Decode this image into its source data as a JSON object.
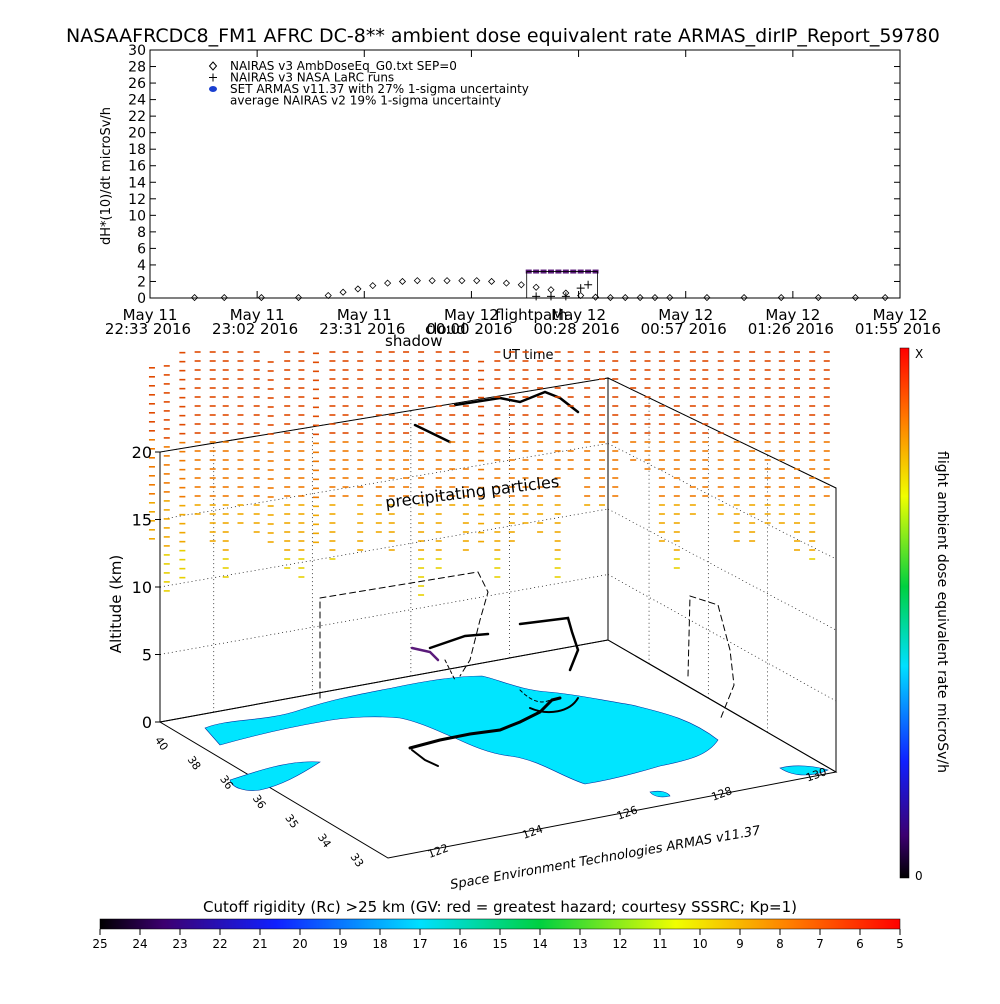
{
  "title": "NASAAFRCDC8_FM1 AFRC DC-8** ambient dose equivalent rate ARMAS_dirIP_Report_59780",
  "chart_data": [
    {
      "type": "scatter",
      "ylabel": "dH*(10)/dt microSv/h",
      "xlabel": "UT time",
      "ylim": [
        0,
        30
      ],
      "yticks": [
        0,
        2,
        4,
        6,
        8,
        10,
        12,
        14,
        16,
        18,
        20,
        22,
        24,
        26,
        28,
        30
      ],
      "xticks": [
        {
          "top": "May 11",
          "bottom": "22:33 2016"
        },
        {
          "top": "May 11",
          "bottom": "23:02 2016"
        },
        {
          "top": "May 11",
          "bottom": "23:31 2016"
        },
        {
          "top": "May 12",
          "bottom": "00:00 2016"
        },
        {
          "top": "May 12",
          "bottom": "00:28 2016"
        },
        {
          "top": "May 12",
          "bottom": "00:57 2016"
        },
        {
          "top": "May 12",
          "bottom": "01:26 2016"
        },
        {
          "top": "May 12",
          "bottom": "01:55 2016"
        }
      ],
      "x_minutes_range": [
        0,
        202
      ],
      "legend_position": "top-left",
      "legend": [
        {
          "symbol": "diamond",
          "label": "NAIRAS v3 AmbDoseEq_G0.txt SEP=0"
        },
        {
          "symbol": "plus",
          "label": "NAIRAS v3 NASA LaRC runs"
        },
        {
          "symbol": "dot",
          "label": "SET ARMAS v11.37 with 27% 1-sigma uncertainty",
          "color": "#1a3fd0"
        },
        {
          "symbol": "none",
          "label": "average NAIRAS v2 19% 1-sigma uncertainty"
        }
      ],
      "annotations": [
        {
          "text": "shadow"
        },
        {
          "text": "cloud"
        },
        {
          "text": "flightpath"
        }
      ],
      "series": [
        {
          "name": "NAIRAS v3 AmbDoseEq_G0.txt SEP=0",
          "symbol": "diamond",
          "x_minutes": [
            12,
            20,
            30,
            40,
            48,
            52,
            56,
            60,
            64,
            68,
            72,
            76,
            80,
            84,
            88,
            92,
            96,
            100,
            104,
            108,
            112,
            116,
            120,
            124,
            128,
            132,
            136,
            140,
            150,
            160,
            170,
            180,
            190,
            198
          ],
          "values": [
            0.05,
            0.05,
            0.05,
            0.05,
            0.3,
            0.7,
            1.1,
            1.5,
            1.8,
            2.0,
            2.1,
            2.1,
            2.1,
            2.1,
            2.1,
            2.0,
            1.8,
            1.6,
            1.3,
            1.0,
            0.6,
            0.3,
            0.1,
            0.05,
            0.05,
            0.05,
            0.05,
            0.05,
            0.05,
            0.05,
            0.05,
            0.05,
            0.05,
            0.05
          ]
        },
        {
          "name": "SET ARMAS v11.37 with 27% 1-sigma uncertainty",
          "symbol": "dot",
          "color": "#5a1a7a",
          "x_minutes": [
            102,
            104,
            106,
            108,
            110,
            112,
            114,
            116,
            118,
            120
          ],
          "values": [
            3.2,
            3.2,
            3.2,
            3.2,
            3.2,
            3.2,
            3.2,
            3.2,
            3.2,
            3.2
          ]
        },
        {
          "name": "NAIRAS v3 NASA LaRC runs",
          "symbol": "plus",
          "x_minutes": [
            104,
            108,
            112,
            116,
            118
          ],
          "values": [
            0.2,
            0.2,
            0.2,
            1.2,
            1.6
          ]
        }
      ]
    },
    {
      "type": "scatter",
      "ylabel": "Altitude (km)",
      "yticks": [
        0,
        5,
        10,
        15,
        20
      ],
      "lat_ticks": [
        "40",
        "38",
        "36",
        "34",
        "33"
      ],
      "lat_ticks_mirrored": [
        "36",
        "35"
      ],
      "lon_ticks": [
        "122",
        "124",
        "126",
        "128",
        "130"
      ],
      "zlabel": "flight ambient dose equivalent rate microSv/h",
      "z_min_label": "0",
      "z_max_label": "X",
      "annotations": [
        {
          "text": "precipitating particles"
        },
        {
          "text": "Space Environment Technologies ARMAS v11.37"
        }
      ],
      "land_color": "#00e5ff"
    },
    {
      "type": "heatmap",
      "title": "Cutoff rigidity (Rc) >25 km (GV: red = greatest hazard; courtesy SSSRC; Kp=1)",
      "ticks": [
        "25",
        "24",
        "23",
        "22",
        "21",
        "20",
        "19",
        "18",
        "17",
        "16",
        "15",
        "14",
        "13",
        "12",
        "11",
        "10",
        "9",
        "8",
        "7",
        "6",
        "5"
      ]
    }
  ]
}
